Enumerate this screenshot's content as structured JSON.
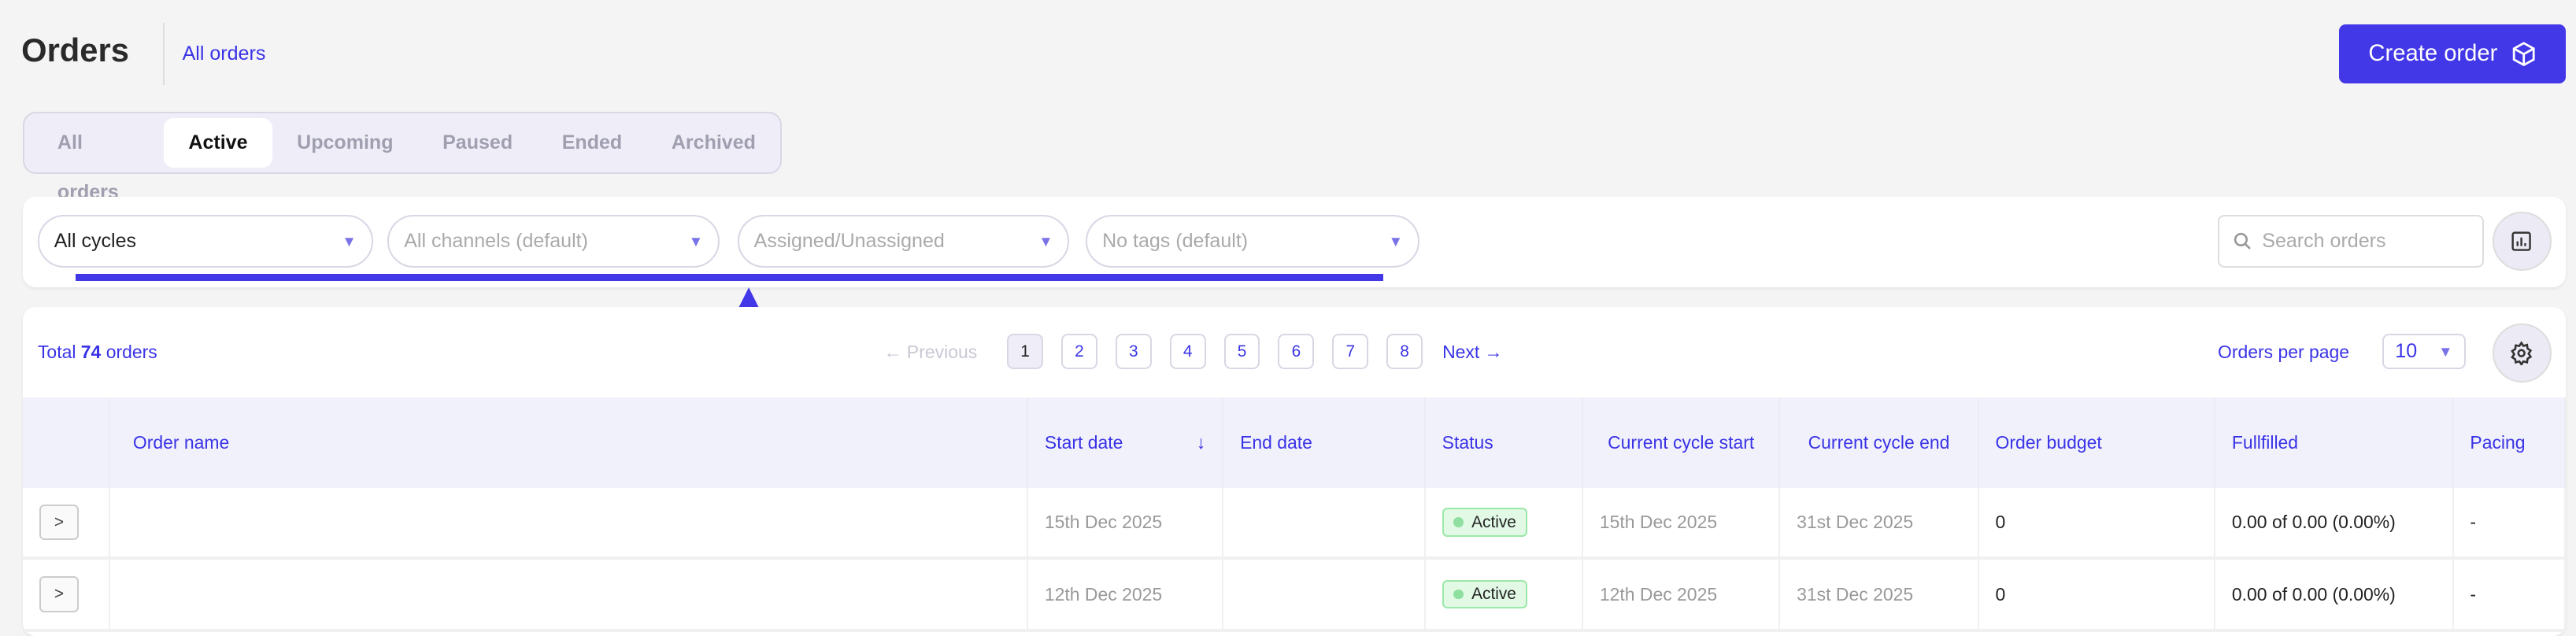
{
  "header": {
    "title": "Orders",
    "breadcrumb": "All orders",
    "create_button": "Create order"
  },
  "tabs": [
    {
      "label": "All orders"
    },
    {
      "label": "Active",
      "active": true
    },
    {
      "label": "Upcoming"
    },
    {
      "label": "Paused"
    },
    {
      "label": "Ended"
    },
    {
      "label": "Archived"
    }
  ],
  "filters": {
    "cycles": "All cycles",
    "channels": "All channels (default)",
    "assignment": "Assigned/Unassigned",
    "tags": "No tags (default)",
    "search_placeholder": "Search orders"
  },
  "summary": {
    "total_prefix": "Total",
    "total_count": "74",
    "total_suffix": "orders"
  },
  "pagination": {
    "previous": "← Previous",
    "pages": [
      "1",
      "2",
      "3",
      "4",
      "5",
      "6",
      "7",
      "8"
    ],
    "current": "1",
    "next": "Next →",
    "per_page_label": "Orders per page",
    "per_page_value": "10"
  },
  "table": {
    "columns": [
      "Order name",
      "Start date",
      "End date",
      "Status",
      "Current cycle start",
      "Current cycle end",
      "Order budget",
      "Fullfilled",
      "Pacing"
    ],
    "sort_indicator": "↓",
    "rows": [
      {
        "name": "",
        "start": "15th Dec 2025",
        "end": "",
        "status": "Active",
        "cycle_start": "15th Dec 2025",
        "cycle_end": "31st Dec 2025",
        "budget": "0",
        "fulfilled": "0.00 of 0.00 (0.00%)",
        "pacing": "-"
      },
      {
        "name": "",
        "start": "12th Dec 2025",
        "end": "",
        "status": "Active",
        "cycle_start": "12th Dec 2025",
        "cycle_end": "31st Dec 2025",
        "budget": "0",
        "fulfilled": "0.00 of 0.00 (0.00%)",
        "pacing": "-"
      }
    ]
  },
  "colors": {
    "accent": "#4338e8",
    "link": "#3a33e6",
    "status_active_bg": "#e2f9e6",
    "annotation": "#4338e8"
  }
}
